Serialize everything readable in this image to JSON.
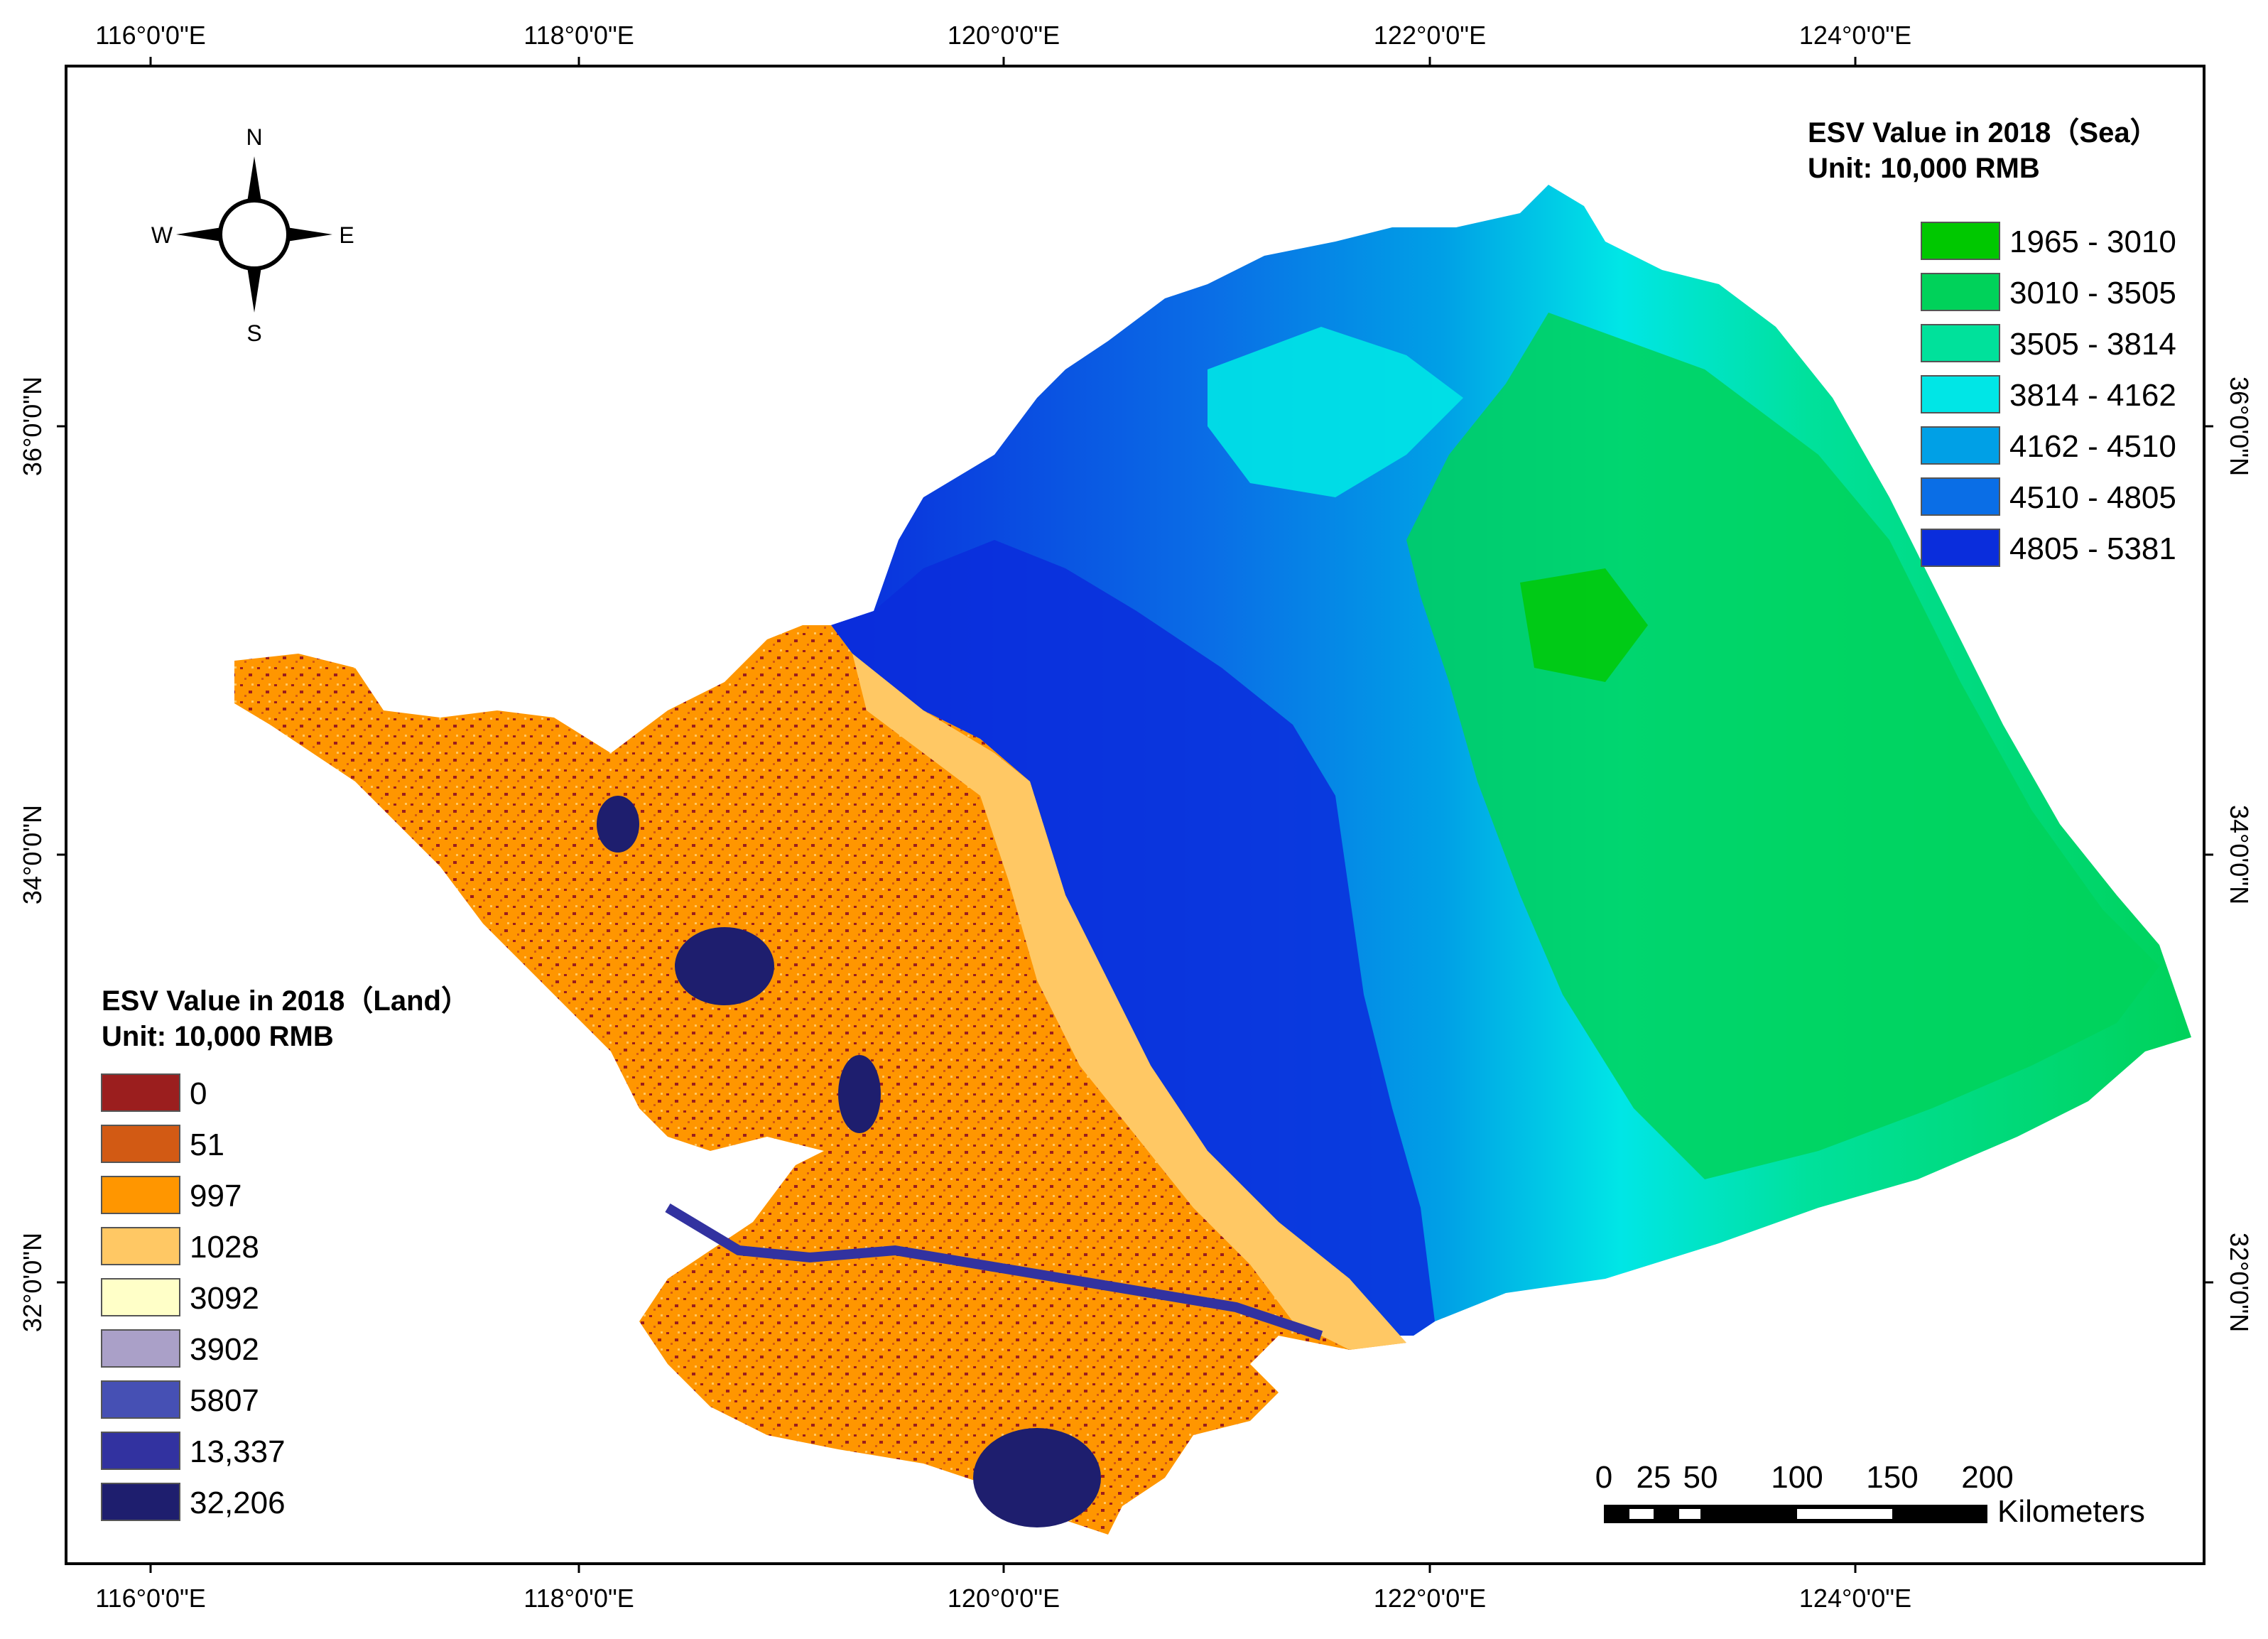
{
  "map": {
    "top_lon_labels": [
      "116°0'0\"E",
      "118°0'0\"E",
      "120°0'0\"E",
      "122°0'0\"E",
      "124°0'0\"E"
    ],
    "bottom_lon_labels": [
      "116°0'0\"E",
      "118°0'0\"E",
      "120°0'0\"E",
      "122°0'0\"E",
      "124°0'0\"E"
    ],
    "left_lat_labels": [
      "36°0'0\"N",
      "34°0'0\"N",
      "32°0'0\"N"
    ],
    "right_lat_labels": [
      "36°0'0\"N",
      "34°0'0\"N",
      "32°0'0\"N"
    ]
  },
  "compass": {
    "north": "N",
    "south": "S",
    "east": "E",
    "west": "W"
  },
  "sea_legend": {
    "title": "ESV Value in 2018（Sea）",
    "unit": "Unit: 10,000  RMB",
    "items": [
      {
        "label": "1965 - 3010",
        "color": "#00c800"
      },
      {
        "label": "3010 - 3505",
        "color": "#00d25a"
      },
      {
        "label": "3505 - 3814",
        "color": "#00e19b"
      },
      {
        "label": "3814 - 4162",
        "color": "#00e6e6"
      },
      {
        "label": "4162 - 4510",
        "color": "#00a0e6"
      },
      {
        "label": "4510 - 4805",
        "color": "#0a6ee6"
      },
      {
        "label": "4805 - 5381",
        "color": "#0a2ddc"
      }
    ]
  },
  "land_legend": {
    "title": "ESV Value in 2018（Land）",
    "unit": "Unit: 10,000  RMB",
    "items": [
      {
        "label": "0",
        "color": "#9b1e1e"
      },
      {
        "label": "51",
        "color": "#d25a14"
      },
      {
        "label": "997",
        "color": "#ff9600"
      },
      {
        "label": "1028",
        "color": "#ffc864"
      },
      {
        "label": "3092",
        "color": "#ffffc8"
      },
      {
        "label": "3902",
        "color": "#aaa0c8"
      },
      {
        "label": "5807",
        "color": "#4650b4"
      },
      {
        "label": "13,337",
        "color": "#3232a0"
      },
      {
        "label": "32,206",
        "color": "#1e1e6e"
      }
    ]
  },
  "scale_bar": {
    "ticks": [
      "0",
      "25",
      "50",
      "100",
      "150",
      "200"
    ],
    "unit": "Kilometers"
  }
}
